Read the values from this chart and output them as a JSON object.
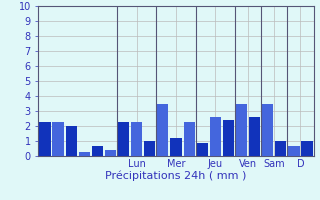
{
  "bars": [
    2.3,
    2.3,
    2.0,
    0.3,
    0.7,
    0.4,
    2.3,
    2.3,
    1.0,
    3.5,
    1.2,
    2.3,
    0.9,
    2.6,
    2.4,
    3.5,
    2.6,
    3.5,
    1.0,
    0.7,
    1.0
  ],
  "n_per_group": [
    6,
    3,
    3,
    3,
    2,
    2,
    2
  ],
  "day_labels": [
    "Lun",
    "Mer",
    "Jeu",
    "Ven",
    "Sam",
    "D"
  ],
  "xlabel": "Précipitations 24h ( mm )",
  "ylim": [
    0,
    10
  ],
  "yticks": [
    0,
    1,
    2,
    3,
    4,
    5,
    6,
    7,
    8,
    9,
    10
  ],
  "bar_color_dark": "#1133bb",
  "bar_color_light": "#4466dd",
  "background_color": "#e0f8f8",
  "grid_color": "#bbbbbb",
  "vline_color": "#555577",
  "text_color": "#3333bb",
  "bar_width": 0.85,
  "xlabel_fontsize": 8,
  "tick_fontsize": 7
}
